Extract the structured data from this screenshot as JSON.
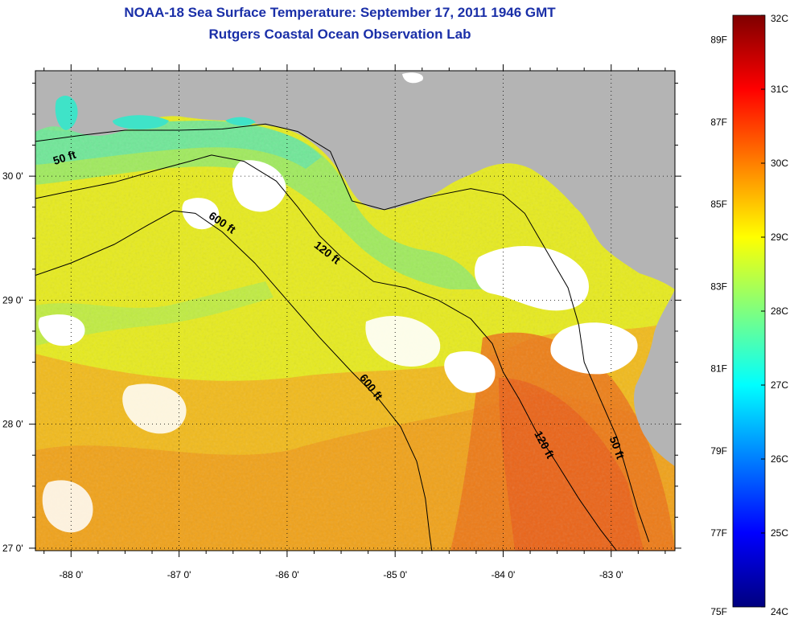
{
  "header": {
    "title": "NOAA-18 Sea Surface Temperature:  September 17, 2011 1946 GMT",
    "subtitle": "Rutgers Coastal Ocean Observation Lab"
  },
  "map": {
    "lon_range": [
      -88.33,
      -82.41
    ],
    "lat_range": [
      26.98,
      30.85
    ],
    "lon_ticks": [
      {
        "value": -88,
        "label": "-88 0'"
      },
      {
        "value": -87,
        "label": "-87 0'"
      },
      {
        "value": -86,
        "label": "-86 0'"
      },
      {
        "value": -85,
        "label": "-85 0'"
      },
      {
        "value": -84,
        "label": "-84 0'"
      },
      {
        "value": -83,
        "label": "-83 0'"
      }
    ],
    "lat_ticks": [
      {
        "value": 27,
        "label": "27 0'"
      },
      {
        "value": 28,
        "label": "28 0'"
      },
      {
        "value": 29,
        "label": "29 0'"
      },
      {
        "value": 30,
        "label": "30 0'"
      }
    ],
    "minor_lon": [
      -88.25,
      -87.75,
      -87.5,
      -87.25,
      -86.75,
      -86.5,
      -86.25,
      -85.75,
      -85.5,
      -85.25,
      -84.75,
      -84.5,
      -84.25,
      -83.75,
      -83.5,
      -83.25,
      -82.75,
      -82.5
    ],
    "minor_lat": [
      27.25,
      27.5,
      27.75,
      28.25,
      28.5,
      28.75,
      29.25,
      29.5,
      29.75,
      30.25,
      30.5,
      30.75
    ],
    "grid": "dotted",
    "land_color": "#b4b4b4",
    "cloud_color": "#ffffff",
    "contours": [
      {
        "label": "50 ft",
        "label_pos": [
          -88.05,
          30.12
        ],
        "points": [
          [
            -88.33,
            30.28
          ],
          [
            -87.9,
            30.33
          ],
          [
            -87.5,
            30.37
          ],
          [
            -87.0,
            30.37
          ],
          [
            -86.6,
            30.38
          ],
          [
            -86.2,
            30.42
          ],
          [
            -85.9,
            30.36
          ],
          [
            -85.6,
            30.2
          ],
          [
            -85.5,
            30.0
          ],
          [
            -85.4,
            29.8
          ],
          [
            -85.1,
            29.73
          ],
          [
            -84.7,
            29.83
          ],
          [
            -84.3,
            29.9
          ],
          [
            -84.0,
            29.85
          ],
          [
            -83.8,
            29.7
          ],
          [
            -83.6,
            29.4
          ],
          [
            -83.4,
            29.1
          ],
          [
            -83.3,
            28.8
          ],
          [
            -83.25,
            28.5
          ],
          [
            -83.1,
            28.2
          ],
          [
            -82.95,
            27.9
          ],
          [
            -82.85,
            27.6
          ],
          [
            -82.75,
            27.3
          ],
          [
            -82.65,
            27.05
          ]
        ]
      },
      {
        "label": "120 ft",
        "label_pos": [
          -85.65,
          29.36
        ],
        "points": [
          [
            -88.33,
            29.82
          ],
          [
            -88.0,
            29.88
          ],
          [
            -87.6,
            29.95
          ],
          [
            -87.2,
            30.05
          ],
          [
            -86.9,
            30.12
          ],
          [
            -86.7,
            30.17
          ],
          [
            -86.4,
            30.12
          ],
          [
            -86.1,
            29.96
          ],
          [
            -85.9,
            29.75
          ],
          [
            -85.7,
            29.52
          ],
          [
            -85.5,
            29.35
          ],
          [
            -85.2,
            29.15
          ],
          [
            -84.9,
            29.1
          ],
          [
            -84.6,
            29.0
          ],
          [
            -84.3,
            28.85
          ],
          [
            -84.1,
            28.65
          ],
          [
            -84.0,
            28.42
          ],
          [
            -83.85,
            28.2
          ],
          [
            -83.7,
            27.95
          ],
          [
            -83.5,
            27.68
          ],
          [
            -83.3,
            27.4
          ],
          [
            -83.1,
            27.15
          ],
          [
            -82.95,
            26.98
          ]
        ]
      },
      {
        "label": "600 ft",
        "label_pos": [
          -86.62,
          29.6
        ],
        "points": [
          [
            -88.33,
            29.2
          ],
          [
            -88.0,
            29.3
          ],
          [
            -87.6,
            29.45
          ],
          [
            -87.3,
            29.6
          ],
          [
            -87.05,
            29.72
          ],
          [
            -86.85,
            29.7
          ],
          [
            -86.6,
            29.55
          ],
          [
            -86.3,
            29.3
          ],
          [
            -86.0,
            29.0
          ],
          [
            -85.7,
            28.7
          ],
          [
            -85.4,
            28.42
          ],
          [
            -85.15,
            28.2
          ],
          [
            -84.95,
            27.98
          ],
          [
            -84.8,
            27.7
          ],
          [
            -84.72,
            27.4
          ],
          [
            -84.68,
            27.1
          ],
          [
            -84.66,
            26.98
          ]
        ]
      },
      {
        "label": "600 ft",
        "label_pos": [
          -85.25,
          28.28
        ],
        "points": []
      },
      {
        "label": "120 ft",
        "label_pos": [
          -83.65,
          27.82
        ],
        "points": []
      },
      {
        "label": "50 ft",
        "label_pos": [
          -82.98,
          27.8
        ],
        "points": []
      }
    ]
  },
  "colorbar": {
    "min_c": 24,
    "max_c": 32,
    "celsius_labels": [
      "32C",
      "31C",
      "30C",
      "29C",
      "28C",
      "27C",
      "26C",
      "25C",
      "24C"
    ],
    "fahrenheit_labels": [
      {
        "value": 89,
        "label": "89F"
      },
      {
        "value": 87,
        "label": "87F"
      },
      {
        "value": 85,
        "label": "85F"
      },
      {
        "value": 83,
        "label": "83F"
      },
      {
        "value": 81,
        "label": "81F"
      },
      {
        "value": 79,
        "label": "79F"
      },
      {
        "value": 77,
        "label": "77F"
      },
      {
        "value": 75,
        "label": "75F"
      }
    ],
    "colors_bottom_to_top": [
      "#00007f",
      "#0000ff",
      "#007fff",
      "#00ffff",
      "#7fff7f",
      "#ffff00",
      "#ff7f00",
      "#ff0000",
      "#7f0000"
    ]
  }
}
